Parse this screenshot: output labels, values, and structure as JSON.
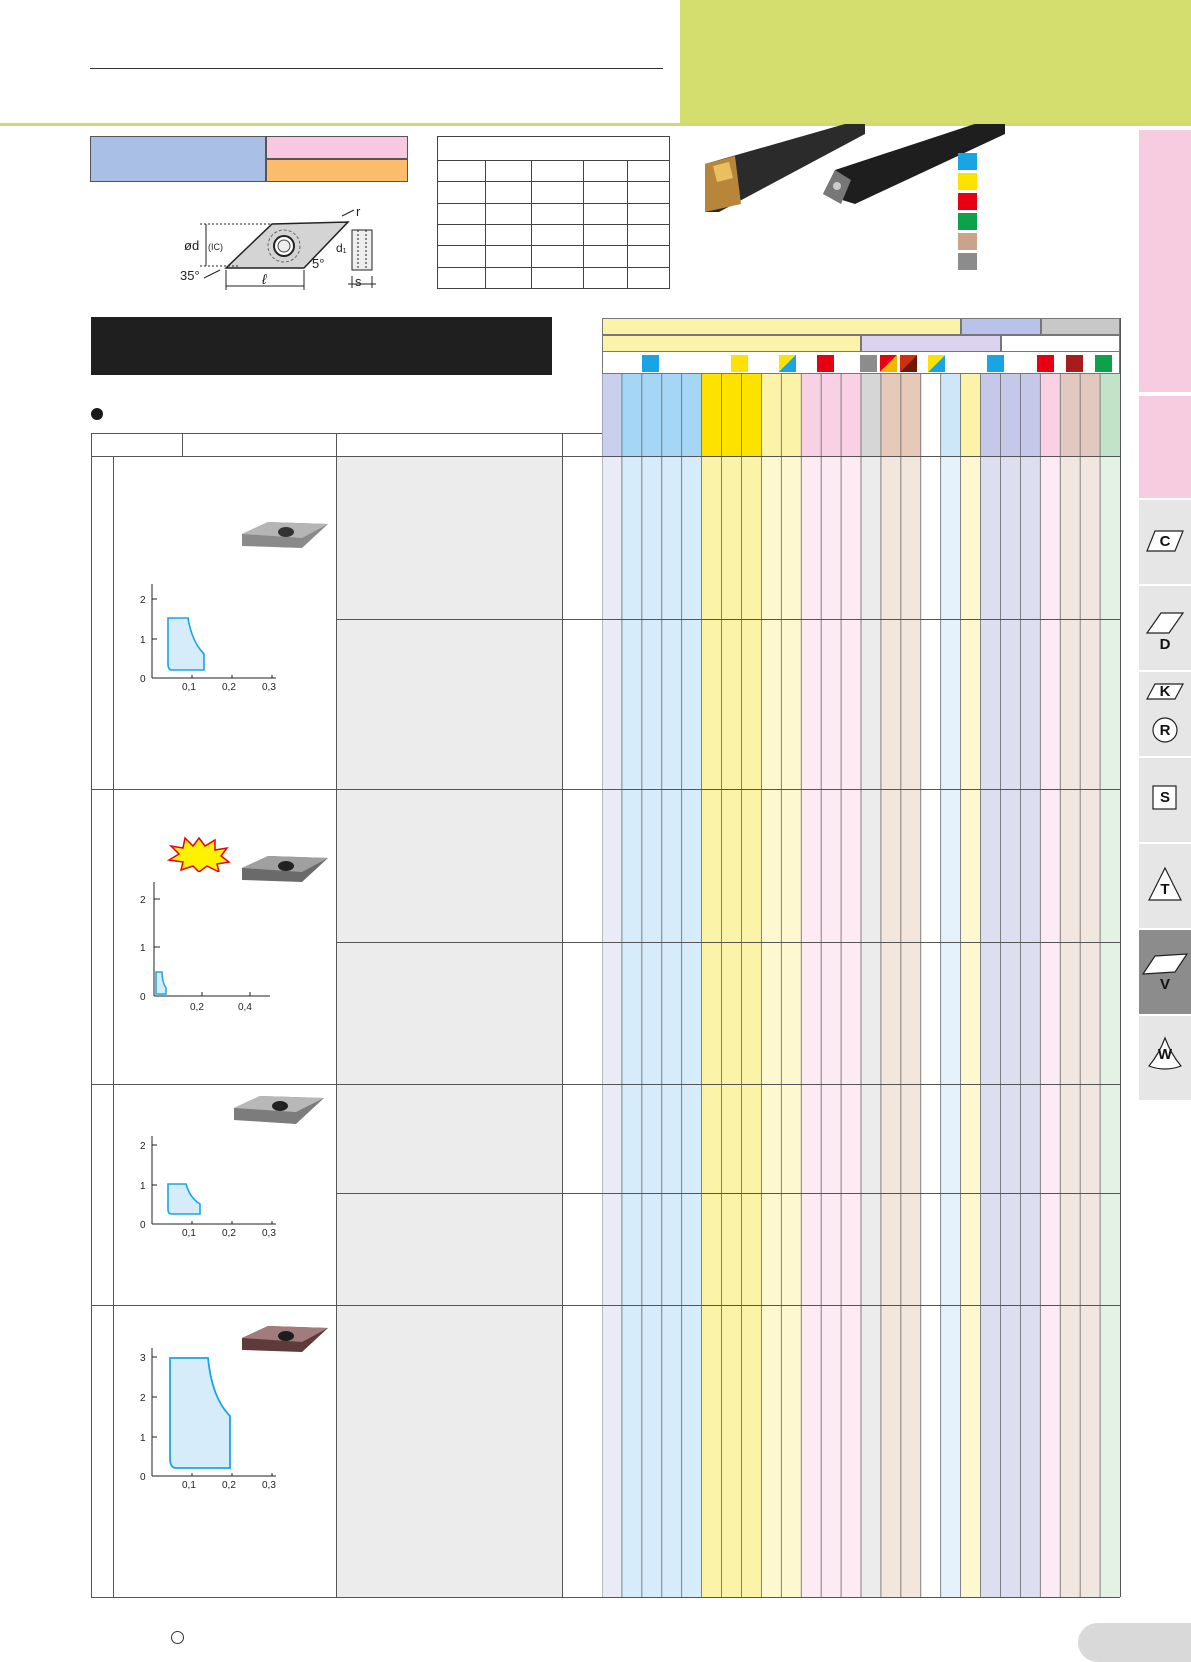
{
  "insert_diagram": {
    "label_r": "r",
    "label_d": "ød",
    "label_ic": "(IC)",
    "label_d1": "d₁",
    "label_l": "ℓ",
    "label_s": "s",
    "label_35": "35°",
    "label_5": "5°"
  },
  "index_tabs": [
    {
      "letter": "C",
      "shape": "parallelogram-c-icon"
    },
    {
      "letter": "D",
      "shape": "parallelogram-d-icon"
    },
    {
      "letter": "K",
      "shape": "parallelogram-k-icon"
    },
    {
      "letter": "R",
      "shape": "circle-r-icon"
    },
    {
      "letter": "S",
      "shape": "square-s-icon"
    },
    {
      "letter": "T",
      "shape": "triangle-t-icon"
    },
    {
      "letter": "V",
      "shape": "rhombus-v-icon"
    },
    {
      "letter": "W",
      "shape": "trigon-w-icon"
    }
  ],
  "active_tab": "V",
  "legend_colors": [
    "#19a5e3",
    "#fde200",
    "#e60012",
    "#0ba24a",
    "#c9a48a",
    "#8c8c8c"
  ],
  "charts": [
    {
      "yticks": [
        "2",
        "1",
        "0"
      ],
      "xticks": [
        "0,1",
        "0,2",
        "0,3"
      ]
    },
    {
      "yticks": [
        "2",
        "1",
        "0"
      ],
      "xticks": [
        "0,2",
        "0,4"
      ]
    },
    {
      "yticks": [
        "2",
        "1",
        "0"
      ],
      "xticks": [
        "0,1",
        "0,2",
        "0,3"
      ]
    },
    {
      "yticks": [
        "3",
        "2",
        "1",
        "0"
      ],
      "xticks": [
        "0,1",
        "0,2",
        "0,3"
      ]
    }
  ]
}
